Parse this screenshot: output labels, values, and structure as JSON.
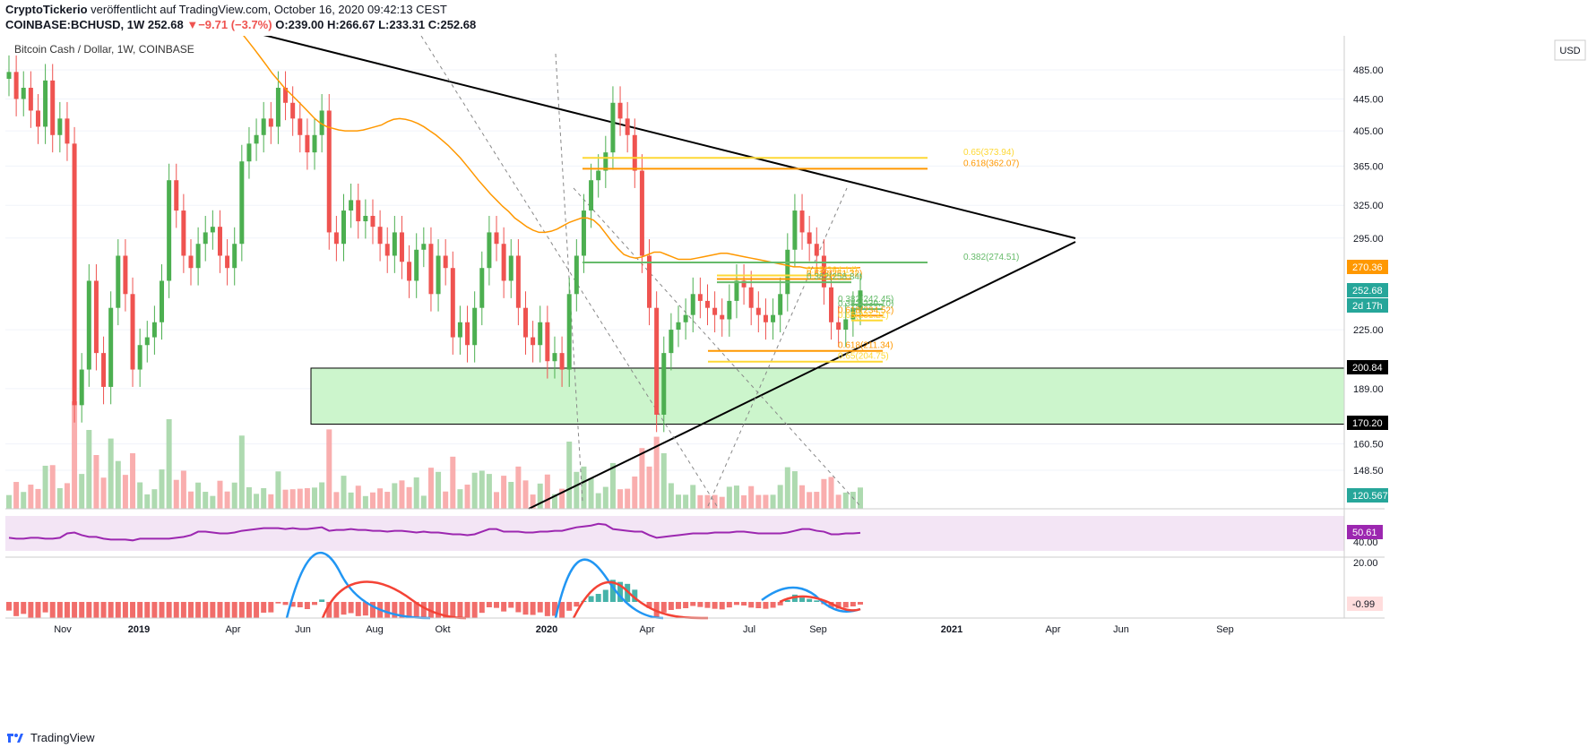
{
  "header": {
    "publisher": "CryptoTickerio",
    "published_line": "veröffentlicht auf TradingView.com, October 16, 2020 09:42:13 CEST",
    "symbol": "COINBASE:BCHUSD, 1W",
    "price": "252.68",
    "change": "−9.71 (−3.7%)",
    "ohlc": "O:239.00 H:266.67 L:233.31 C:252.68"
  },
  "legend": "Bitcoin Cash / Dollar, 1W, COINBASE",
  "currency": "USD",
  "footer": {
    "brand": "TradingView"
  },
  "colors": {
    "up": "#26a69a",
    "up_candle": "#4caf50",
    "down": "#ef5350",
    "ma": "#ff9800",
    "trend": "#000000",
    "fib_green": "#66bb6a",
    "fib_yellow": "#fdd835",
    "fib_orange": "#ff9800",
    "zone": "#ccf5cc",
    "rsi": "#9c27b0",
    "macd": "#2196f3",
    "signal": "#f44336"
  },
  "chart_data": [
    {
      "type": "candlestick",
      "title": "Bitcoin Cash / Dollar, 1W, COINBASE",
      "x_ticks": [
        "Nov",
        "2019",
        "Apr",
        "Jun",
        "Aug",
        "Okt",
        "2020",
        "Apr",
        "Jul",
        "Sep",
        "2021",
        "Apr",
        "Jun",
        "Sep"
      ],
      "y_ticks": [
        148.5,
        160.5,
        189.0,
        225.0,
        295.0,
        325.0,
        365.0,
        405.0,
        445.0,
        485.0
      ],
      "price_labels": [
        {
          "label": "270.36",
          "kind": "ma"
        },
        {
          "label": "252.68",
          "kind": "price"
        },
        {
          "label": "2d 17h",
          "kind": "countdown"
        },
        {
          "label": "200.84",
          "kind": "level"
        },
        {
          "label": "170.20",
          "kind": "level"
        },
        {
          "label": "120.567K",
          "kind": "volume"
        }
      ],
      "candles_close": [
        482,
        445,
        460,
        430,
        410,
        470,
        400,
        420,
        390,
        180,
        200,
        260,
        210,
        190,
        240,
        280,
        250,
        200,
        215,
        220,
        230,
        260,
        350,
        320,
        280,
        270,
        290,
        300,
        305,
        280,
        270,
        290,
        370,
        390,
        400,
        420,
        410,
        460,
        440,
        420,
        400,
        380,
        400,
        430,
        300,
        290,
        320,
        330,
        310,
        315,
        305,
        290,
        280,
        300,
        275,
        260,
        285,
        290,
        250,
        280,
        270,
        220,
        230,
        215,
        240,
        270,
        300,
        290,
        260,
        280,
        240,
        220,
        215,
        230,
        205,
        210,
        200,
        250,
        280,
        320,
        350,
        360,
        380,
        440,
        420,
        400,
        360,
        280,
        240,
        175,
        210,
        225,
        230,
        235,
        250,
        245,
        240,
        235,
        232,
        245,
        260,
        255,
        240,
        235,
        230,
        235,
        250,
        285,
        320,
        300,
        290,
        280,
        255,
        230,
        225,
        232,
        240,
        252.68
      ],
      "ma_values": [
        540,
        528,
        516,
        504,
        492,
        480,
        470,
        460,
        452,
        444,
        436,
        428,
        420,
        414,
        410,
        408,
        406,
        405,
        405,
        405,
        406,
        408,
        410,
        412,
        416,
        419,
        420,
        419,
        417,
        414,
        410,
        405,
        400,
        394,
        388,
        381,
        374,
        366,
        358,
        350,
        343,
        336,
        330,
        324,
        319,
        313,
        309,
        305,
        302,
        300,
        300,
        301,
        303,
        306,
        309,
        311,
        313,
        313,
        311,
        306,
        299,
        292,
        286,
        281,
        279,
        278,
        279,
        281,
        283,
        283,
        281,
        279,
        277,
        277,
        277,
        278,
        279,
        280,
        281,
        282,
        282,
        281,
        280,
        279,
        278,
        277,
        276,
        275,
        274,
        273,
        272,
        271,
        271,
        270,
        270,
        270,
        270,
        270,
        270,
        270,
        270,
        270,
        270.36
      ],
      "fib_levels": [
        {
          "label": "0.65(373.94)",
          "value": 373.94,
          "color": "yellow"
        },
        {
          "label": "0.618(362.07)",
          "value": 362.07,
          "color": "orange"
        },
        {
          "label": "0.382(274.51)",
          "value": 274.51,
          "color": "green"
        },
        {
          "label": "0.65(264.14)",
          "value": 264.14,
          "color": "yellow"
        },
        {
          "label": "0.618(261.32)",
          "value": 261.32,
          "color": "orange"
        },
        {
          "label": "0.382(258.84)",
          "value": 258.84,
          "color": "green"
        },
        {
          "label": "0.382(242.45)",
          "value": 242.45,
          "color": "green"
        },
        {
          "label": "0.382(239.10)",
          "value": 239.1,
          "color": "green"
        },
        {
          "label": "0.618(234.52)",
          "value": 234.52,
          "color": "orange"
        },
        {
          "label": "0.65(231.21)",
          "value": 231.21,
          "color": "yellow"
        },
        {
          "label": "0.618(211.34)",
          "value": 211.34,
          "color": "orange"
        },
        {
          "label": "0.65(204.75)",
          "value": 204.75,
          "color": "yellow"
        }
      ],
      "support_zone": [
        170.2,
        200.84
      ]
    },
    {
      "type": "line",
      "title": "RSI",
      "y_ticks": [
        40.0
      ],
      "current_label": "50.61",
      "values": [
        45,
        44,
        44,
        45,
        45,
        44,
        44,
        45,
        50,
        51,
        48,
        46,
        46,
        44,
        43,
        43,
        43,
        42,
        44,
        44,
        44,
        44,
        44,
        45,
        46,
        48,
        52,
        52,
        51,
        50,
        50,
        51,
        53,
        54,
        55,
        56,
        56,
        56,
        55,
        56,
        55,
        55,
        56,
        57,
        53,
        54,
        54,
        55,
        54,
        54,
        53,
        53,
        52,
        53,
        53,
        52,
        51,
        52,
        51,
        51,
        50,
        49,
        49,
        48,
        49,
        52,
        55,
        55,
        52,
        52,
        52,
        51,
        51,
        52,
        52,
        53,
        53,
        55,
        57,
        58,
        59,
        61,
        60,
        55,
        54,
        53,
        52,
        52,
        48,
        45,
        46,
        47,
        48,
        49,
        50,
        50,
        50,
        51,
        51,
        51,
        52,
        52,
        51,
        50,
        50,
        50,
        50,
        51,
        53,
        55,
        55,
        53,
        52,
        49,
        49,
        50,
        50,
        50.61
      ]
    },
    {
      "type": "bar",
      "title": "MACD",
      "y_ticks": [
        20.0
      ],
      "current_label": "-0.99"
    }
  ]
}
